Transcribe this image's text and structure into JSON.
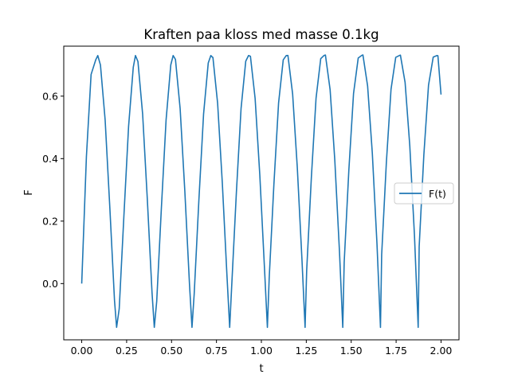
{
  "chart_data": {
    "type": "line",
    "title": "Kraften paa kloss med masse 0.1kg",
    "xlabel": "t",
    "ylabel": "F",
    "xlim": [
      -0.1,
      2.1
    ],
    "ylim": [
      -0.18,
      0.76
    ],
    "xticks": [
      0.0,
      0.25,
      0.5,
      0.75,
      1.0,
      1.25,
      1.5,
      1.75,
      2.0
    ],
    "xtick_labels": [
      "0.00",
      "0.25",
      "0.50",
      "0.75",
      "1.00",
      "1.25",
      "1.50",
      "1.75",
      "2.00"
    ],
    "yticks": [
      0.0,
      0.2,
      0.4,
      0.6
    ],
    "ytick_labels": [
      "0.0",
      "0.2",
      "0.4",
      "0.6"
    ],
    "grid": false,
    "legend_position": "center-right",
    "series": [
      {
        "name": "F(t)",
        "color": "#1f77b4",
        "x": [
          0.0,
          0.0261,
          0.0522,
          0.0783,
          0.0893,
          0.1043,
          0.1304,
          0.1565,
          0.1826,
          0.1942,
          0.2087,
          0.2348,
          0.2609,
          0.287,
          0.2991,
          0.313,
          0.3391,
          0.3652,
          0.3913,
          0.404,
          0.4174,
          0.4435,
          0.4696,
          0.4957,
          0.5089,
          0.5217,
          0.5478,
          0.5739,
          0.6,
          0.6138,
          0.6261,
          0.6522,
          0.6783,
          0.7043,
          0.7187,
          0.7304,
          0.7565,
          0.7826,
          0.8087,
          0.8236,
          0.8348,
          0.8609,
          0.887,
          0.913,
          0.9286,
          0.9391,
          0.9652,
          0.9913,
          1.0174,
          1.0335,
          1.0435,
          1.0696,
          1.0957,
          1.1217,
          1.1384,
          1.1478,
          1.1739,
          1.2,
          1.2261,
          1.2433,
          1.2522,
          1.2783,
          1.3043,
          1.3304,
          1.3482,
          1.3565,
          1.3826,
          1.4087,
          1.4348,
          1.4531,
          1.4609,
          1.487,
          1.513,
          1.5391,
          1.558,
          1.5652,
          1.5913,
          1.6174,
          1.6435,
          1.6629,
          1.6696,
          1.6957,
          1.7217,
          1.7478,
          1.7678,
          1.7739,
          1.8,
          1.8261,
          1.8522,
          1.8728,
          1.8783,
          1.9043,
          1.9304,
          1.9565,
          1.9777,
          1.9826,
          2.0
        ],
        "y": [
          0.0,
          0.4063,
          0.6694,
          0.7166,
          0.73,
          0.6997,
          0.5239,
          0.2431,
          -0.0546,
          -0.14,
          -0.0807,
          0.2167,
          0.5036,
          0.6926,
          0.73,
          0.7107,
          0.5422,
          0.2696,
          -0.0286,
          -0.14,
          -0.0572,
          0.2423,
          0.5238,
          0.6998,
          0.73,
          0.7177,
          0.5602,
          0.2965,
          -0.0035,
          -0.14,
          -0.0327,
          0.2678,
          0.5428,
          0.7062,
          0.73,
          0.7234,
          0.5769,
          0.3219,
          0.0227,
          -0.14,
          -0.0085,
          0.2918,
          0.5608,
          0.7119,
          0.73,
          0.7276,
          0.5927,
          0.3472,
          0.0483,
          -0.14,
          0.0171,
          0.3166,
          0.5778,
          0.7163,
          0.73,
          0.7302,
          0.6072,
          0.371,
          0.0743,
          -0.14,
          0.0422,
          0.3402,
          0.5935,
          0.7199,
          0.73,
          0.7316,
          0.6205,
          0.3953,
          0.1012,
          -0.14,
          0.0678,
          0.3645,
          0.6084,
          0.7222,
          0.73,
          0.7319,
          0.6327,
          0.4181,
          0.1269,
          -0.14,
          0.0929,
          0.3876,
          0.6221,
          0.7241,
          0.73,
          0.7312,
          0.6437,
          0.4412,
          0.1533,
          -0.14,
          0.1187,
          0.4114,
          0.6352,
          0.7251,
          0.73,
          0.7294,
          0.605
        ]
      }
    ]
  }
}
